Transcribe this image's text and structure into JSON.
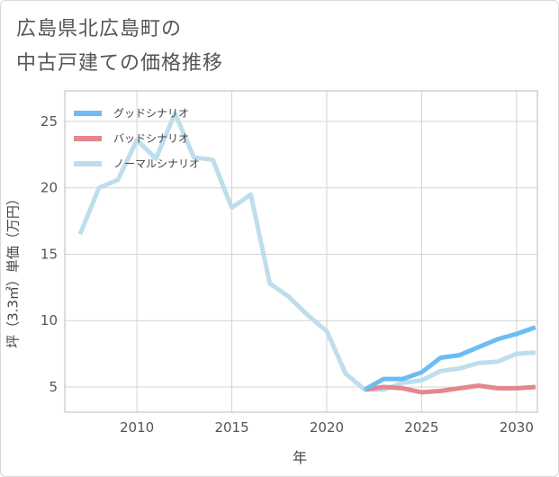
{
  "title": {
    "line1": "広島県北広島町の",
    "line2": "中古戸建ての価格推移"
  },
  "chart_data": {
    "type": "line",
    "xlabel": "年",
    "ylabel": "坪（3.3㎡）単価（万円）",
    "xlim": [
      2006.2,
      2031.1
    ],
    "ylim": [
      3.1,
      27.3
    ],
    "xticks": [
      2010,
      2015,
      2020,
      2025,
      2030
    ],
    "yticks": [
      5,
      10,
      15,
      20,
      25
    ],
    "grid": true,
    "legend_position": "top-left",
    "series": [
      {
        "name": "グッドシナリオ",
        "color": "#6dbcf3",
        "x": [
          2022,
          2023,
          2024,
          2025,
          2026,
          2027,
          2028,
          2029,
          2030,
          2031
        ],
        "values": [
          4.8,
          5.6,
          5.6,
          6.1,
          7.2,
          7.4,
          8.0,
          8.6,
          9.0,
          9.5
        ]
      },
      {
        "name": "バッドシナリオ",
        "color": "#e4868f",
        "x": [
          2022,
          2023,
          2024,
          2025,
          2026,
          2027,
          2028,
          2029,
          2030,
          2031
        ],
        "values": [
          4.8,
          5.0,
          4.9,
          4.6,
          4.7,
          4.9,
          5.1,
          4.9,
          4.9,
          5.0
        ]
      },
      {
        "name": "ノーマルシナリオ",
        "color": "#bedeeb",
        "x": [
          2007,
          2008,
          2009,
          2010,
          2011,
          2012,
          2013,
          2014,
          2015,
          2016,
          2017,
          2018,
          2019,
          2020,
          2021,
          2022,
          2023,
          2024,
          2025,
          2026,
          2027,
          2028,
          2029,
          2030,
          2031
        ],
        "values": [
          16.5,
          20.0,
          20.6,
          23.6,
          22.2,
          25.6,
          22.3,
          22.1,
          18.5,
          19.5,
          12.8,
          11.8,
          10.4,
          9.2,
          6.0,
          4.8,
          4.8,
          5.3,
          5.5,
          6.2,
          6.4,
          6.8,
          6.9,
          7.5,
          7.6
        ]
      }
    ]
  }
}
